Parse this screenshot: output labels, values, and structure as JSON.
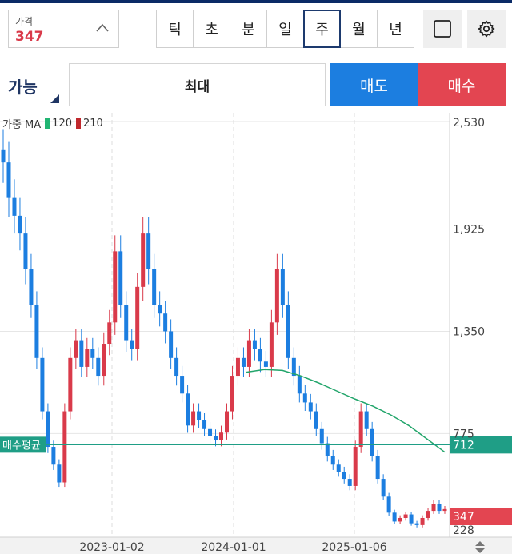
{
  "price": {
    "label": "가격",
    "value": "347"
  },
  "timeframes": [
    "틱",
    "초",
    "분",
    "일",
    "주",
    "월",
    "년"
  ],
  "active_timeframe": "주",
  "order": {
    "available_label": "가능",
    "max_label": "최대",
    "sell_label": "매도",
    "buy_label": "매수"
  },
  "legend": {
    "prefix": "가중 MA",
    "ma1": "120",
    "ma2": "210",
    "ma1_color": "#22b573",
    "ma2_color": "#c0282d"
  },
  "colors": {
    "up": "#d93a4a",
    "down": "#1c7ee0",
    "avg_line": "#1f9e86"
  },
  "chart_data": {
    "type": "candlestick",
    "y_ticks": [
      "2,530",
      "1,925",
      "1,350",
      "775",
      "228"
    ],
    "x_ticks": [
      "2023-01-02",
      "2024-01-01",
      "2025-01-06"
    ],
    "avg_price": {
      "label": "매수평균",
      "value": 712
    },
    "last_price": 347,
    "y_range": [
      228,
      2530
    ],
    "ma120": [
      1120,
      1135,
      1130,
      1100,
      1060,
      1015,
      970,
      930,
      880,
      820,
      745,
      670
    ],
    "closes": [
      2300,
      2100,
      2000,
      1900,
      1700,
      1500,
      1200,
      900,
      700,
      600,
      500,
      900,
      1200,
      1300,
      1150,
      1250,
      1200,
      1100,
      1280,
      1400,
      1800,
      1500,
      1300,
      1250,
      1600,
      1900,
      1700,
      1500,
      1450,
      1350,
      1200,
      1100,
      1000,
      820,
      900,
      850,
      800,
      760,
      740,
      780,
      900,
      1100,
      1200,
      1150,
      1300,
      1250,
      1180,
      1150,
      1400,
      1700,
      1500,
      1200,
      1100,
      1000,
      950,
      900,
      800,
      720,
      650,
      600,
      560,
      520,
      480,
      700,
      900,
      800,
      650,
      520,
      420,
      330,
      280,
      300,
      320,
      270,
      260,
      300,
      340,
      380,
      340,
      350
    ]
  }
}
